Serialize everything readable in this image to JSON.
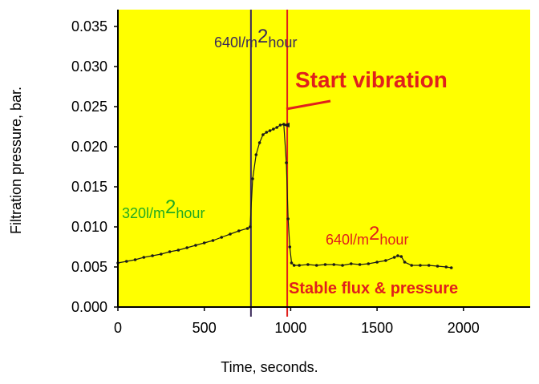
{
  "chart_data": {
    "type": "scatter",
    "xlabel": "Time, seconds.",
    "ylabel": "Filtration pressure, bar.",
    "xlim": [
      0,
      2350
    ],
    "ylim": [
      0,
      0.035
    ],
    "x_ticks": [
      0,
      500,
      1000,
      1500,
      2000
    ],
    "x_tick_labels": [
      "0",
      "500",
      "1000",
      "1500",
      "2000"
    ],
    "y_ticks": [
      0,
      0.005,
      0.01,
      0.015,
      0.02,
      0.025,
      0.03,
      0.035
    ],
    "y_tick_labels": [
      "0.000",
      "0.005",
      "0.010",
      "0.015",
      "0.020",
      "0.025",
      "0.030",
      "0.035"
    ],
    "background_color": "#ffff00",
    "grid": false,
    "vertical_lines": [
      {
        "x": 770,
        "color": "#3a2a5a"
      },
      {
        "x": 980,
        "color": "#e0201c"
      }
    ],
    "annotations": {
      "flux_320": {
        "number": "320",
        "unit": "l/m",
        "sup": "2",
        "tail": "hour",
        "color": "#22aa22"
      },
      "flux_640_top": {
        "number": "640",
        "unit": "l/m",
        "sup": "2",
        "tail": "hour",
        "color": "#3a2a5a"
      },
      "flux_640_right": {
        "number": "640",
        "unit": "l/m",
        "sup": "2",
        "tail": "hour",
        "color": "#e0201c"
      },
      "start_vibration": {
        "text": "Start vibration",
        "color": "#e0201c"
      },
      "stable": {
        "text": "Stable flux & pressure",
        "color": "#e0201c"
      }
    },
    "series": [
      {
        "color": "#1a1a1a",
        "x": [
          0,
          50,
          100,
          150,
          200,
          250,
          300,
          350,
          400,
          450,
          500,
          550,
          600,
          650,
          700,
          750,
          765,
          780,
          800,
          820,
          840,
          860,
          880,
          900,
          920,
          940,
          960,
          975,
          985,
          995,
          1005,
          1020,
          1050,
          1100,
          1150,
          1200,
          1250,
          1300,
          1350,
          1400,
          1450,
          1500,
          1550,
          1600,
          1620,
          1640,
          1660,
          1700,
          1750,
          1800,
          1850,
          1900,
          1930
        ],
        "y": [
          0.0055,
          0.0057,
          0.0059,
          0.0062,
          0.0064,
          0.0066,
          0.0069,
          0.0071,
          0.0074,
          0.0077,
          0.008,
          0.0083,
          0.0087,
          0.0091,
          0.0095,
          0.0098,
          0.01,
          0.016,
          0.019,
          0.0205,
          0.0215,
          0.0218,
          0.022,
          0.0222,
          0.0224,
          0.0227,
          0.0228,
          0.018,
          0.011,
          0.0075,
          0.0055,
          0.0052,
          0.0052,
          0.0053,
          0.0052,
          0.0053,
          0.0053,
          0.0052,
          0.0054,
          0.0053,
          0.0054,
          0.0056,
          0.0058,
          0.0062,
          0.0064,
          0.0063,
          0.0056,
          0.0052,
          0.0052,
          0.0052,
          0.0051,
          0.005,
          0.0049
        ]
      }
    ]
  }
}
